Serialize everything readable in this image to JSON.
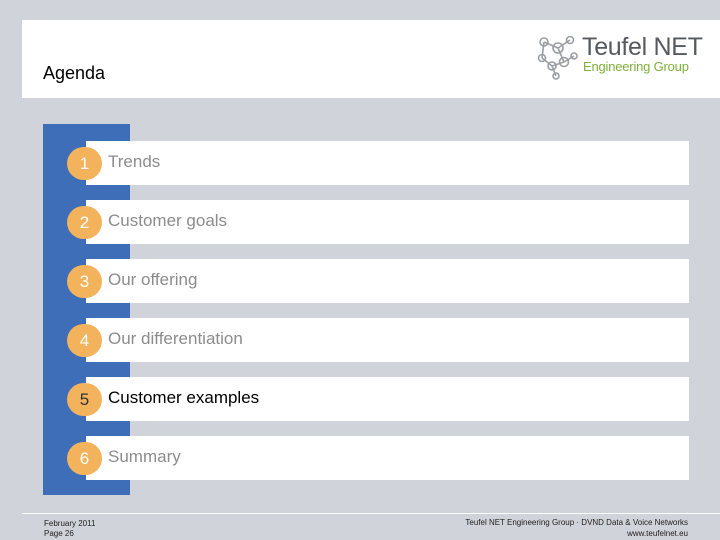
{
  "header": {
    "title": "Agenda",
    "logo": {
      "name": "Teufel NET",
      "subtitle": "Engineering Group"
    }
  },
  "agenda": {
    "items": [
      {
        "number": "1",
        "label": "Trends",
        "active": false
      },
      {
        "number": "2",
        "label": "Customer goals",
        "active": false
      },
      {
        "number": "3",
        "label": "Our offering",
        "active": false
      },
      {
        "number": "4",
        "label": "Our differentiation",
        "active": false
      },
      {
        "number": "5",
        "label": "Customer examples",
        "active": true
      },
      {
        "number": "6",
        "label": "Summary",
        "active": false
      }
    ]
  },
  "footer": {
    "date": "February 2011",
    "page": "Page 26",
    "company": "Teufel NET Engineering Group · DVND Data & Voice Networks",
    "website": "www.teufelnet.eu"
  },
  "colors": {
    "background": "#d1d3da",
    "sidebar": "#3f6eb8",
    "badge": "#f3b35c",
    "logo_gray": "#555a5e",
    "logo_green": "#7db13a"
  }
}
